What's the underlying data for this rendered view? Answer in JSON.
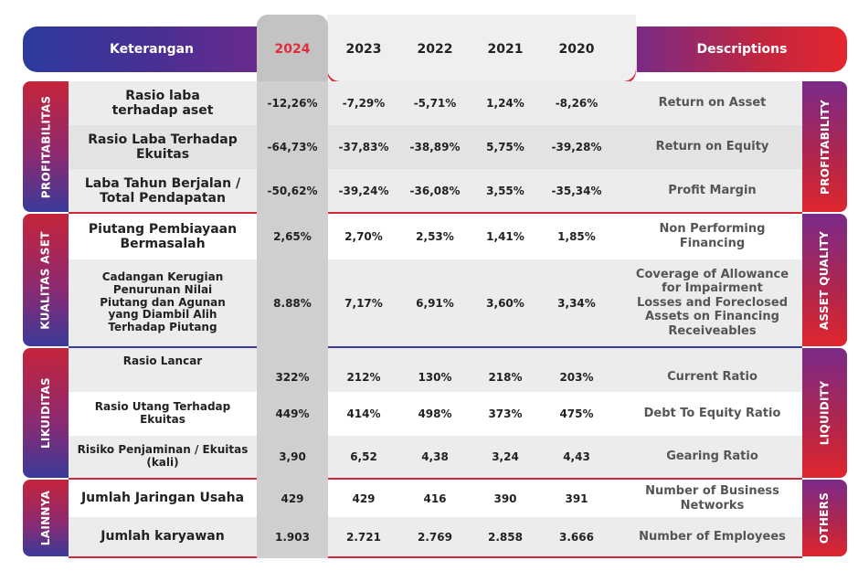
{
  "header": {
    "left_label": "Keterangan",
    "years": [
      "2024",
      "2023",
      "2022",
      "2021",
      "2020"
    ],
    "right_label": "Descriptions"
  },
  "groups": [
    {
      "name_id": "PROFITABILITAS",
      "name_en": "PROFITABILITY",
      "rows": [
        {
          "label": "Rasio laba\nterhadap aset",
          "values": [
            "-12,26%",
            "-7,29%",
            "-5,71%",
            "1,24%",
            "-8,26%"
          ],
          "desc": "Return on Asset"
        },
        {
          "label": "Rasio Laba Terhadap\nEkuitas",
          "values": [
            "-64,73%",
            "-37,83%",
            "-38,89%",
            "5,75%",
            "-39,28%"
          ],
          "desc": "Return on Equity"
        },
        {
          "label": "Laba Tahun Berjalan /\nTotal Pendapatan",
          "values": [
            "-50,62%",
            "-39,24%",
            "-36,08%",
            "3,55%",
            "-35,34%"
          ],
          "desc": "Profit Margin"
        }
      ]
    },
    {
      "name_id": "KUALITAS ASET",
      "name_en": "ASSET QUALITY",
      "rows": [
        {
          "label": "Piutang Pembiayaan\nBermasalah",
          "values": [
            "2,65%",
            "2,70%",
            "2,53%",
            "1,41%",
            "1,85%"
          ],
          "desc": "Non Performing\nFinancing"
        },
        {
          "label": "Cadangan Kerugian\nPenurunan Nilai\nPiutang dan Agunan\nyang Diambil Alih\nTerhadap Piutang",
          "values": [
            "8.88%",
            "7,17%",
            "6,91%",
            "3,60%",
            "3,34%"
          ],
          "desc": "Coverage of Allowance\nfor Impairment\nLosses and Foreclosed\nAssets on Financing\nReceiveables"
        }
      ]
    },
    {
      "name_id": "LIKUIDITAS",
      "name_en": "LIQUIDITY",
      "rows": [
        {
          "label": "Rasio Lancar",
          "values": [
            "322%",
            "212%",
            "130%",
            "218%",
            "203%"
          ],
          "desc": "Current Ratio"
        },
        {
          "label": "Rasio Utang Terhadap\nEkuitas",
          "values": [
            "449%",
            "414%",
            "498%",
            "373%",
            "475%"
          ],
          "desc": "Debt To Equity Ratio"
        },
        {
          "label": "Risiko Penjaminan / Ekuitas\n(kali)",
          "values": [
            "3,90",
            "6,52",
            "4,38",
            "3,24",
            "4,43"
          ],
          "desc": "Gearing Ratio"
        }
      ]
    },
    {
      "name_id": "LAINNYA",
      "name_en": "OTHERS",
      "rows": [
        {
          "label": "Jumlah Jaringan Usaha",
          "values": [
            "429",
            "429",
            "416",
            "390",
            "391"
          ],
          "desc": "Number of Business\nNetworks"
        },
        {
          "label": "Jumlah karyawan",
          "values": [
            "1.903",
            "2.721",
            "2.769",
            "2.858",
            "3.666"
          ],
          "desc": "Number of Employees"
        }
      ]
    }
  ],
  "colors": {
    "accent_red": "#e02e3c",
    "accent_blue": "#2e3a9e",
    "highlight_year": "#e02e3c"
  }
}
